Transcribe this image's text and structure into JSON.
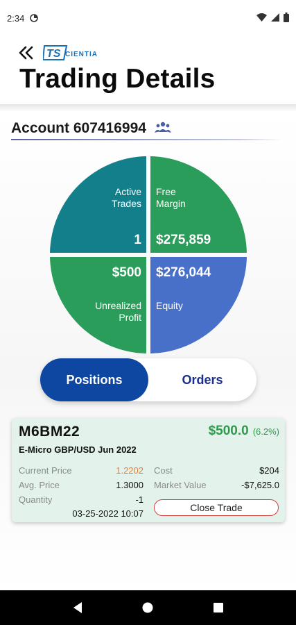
{
  "status_bar": {
    "time": "2:34",
    "left_icon": "data-saver-icon",
    "right_icons": [
      "wifi-icon",
      "signal-icon",
      "battery-icon"
    ]
  },
  "header": {
    "back_icon": "double-chevron-left-icon",
    "logo_text": "TScientia",
    "title": "Trading Details"
  },
  "account": {
    "label": "Account 607416994",
    "icon": "people-icon"
  },
  "summary": {
    "active_trades": {
      "label_line1": "Active",
      "label_line2": "Trades",
      "value": "1",
      "color": "#127f8b"
    },
    "free_margin": {
      "label_line1": "Free",
      "label_line2": "Margin",
      "value": "$275,859",
      "color": "#2a9d5a"
    },
    "unrealized_profit": {
      "label_line1": "Unrealized",
      "label_line2": "Profit",
      "value": "$500",
      "color": "#2a9d5a"
    },
    "equity": {
      "label_line1": "Equity",
      "value": "$276,044",
      "color": "#4870c8"
    }
  },
  "tabs": {
    "positions": "Positions",
    "orders": "Orders",
    "active": "positions"
  },
  "position": {
    "symbol": "M6BM22",
    "pnl": "$500.0",
    "pnl_pct": "(6.2%)",
    "description": "E-Micro GBP/USD Jun 2022",
    "current_price_label": "Current Price",
    "current_price": "1.2202",
    "avg_price_label": "Avg. Price",
    "avg_price": "1.3000",
    "quantity_label": "Quantity",
    "quantity": "-1",
    "cost_label": "Cost",
    "cost": "$204",
    "market_value_label": "Market Value",
    "market_value": "-$7,625.0",
    "timestamp": "03-25-2022 10:07",
    "close_button": "Close Trade"
  },
  "nav": {
    "back": "back-triangle-icon",
    "home": "home-circle-icon",
    "recents": "recents-square-icon"
  }
}
